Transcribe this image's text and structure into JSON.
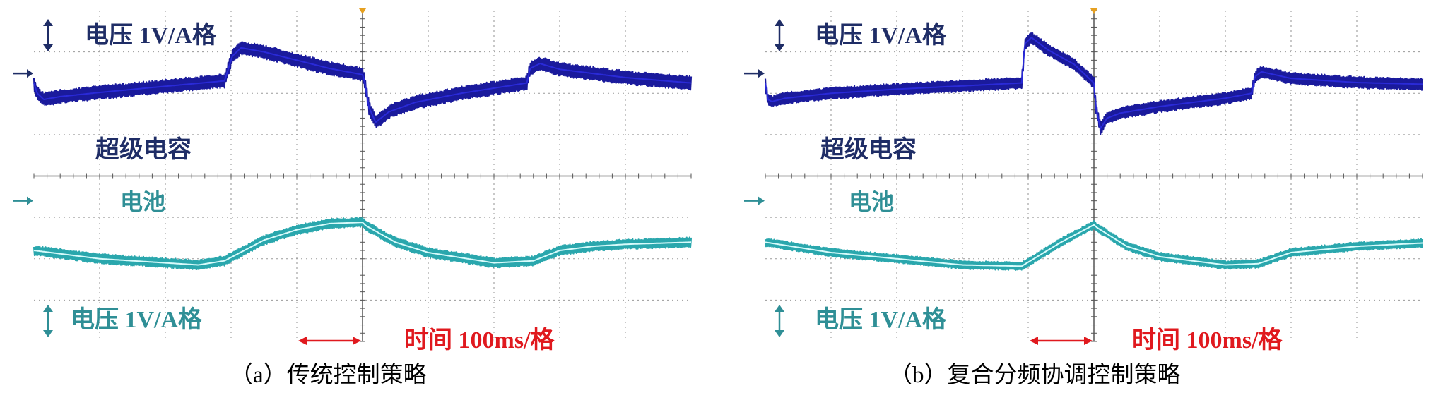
{
  "colors": {
    "capacitor": "#1a1a9c",
    "capacitor_label": "#1f2d66",
    "battery": "#2aa7ad",
    "battery_label": "#2f8f96",
    "time": "#e0191e",
    "trigger": "#e6a020",
    "grid": "#9a9a9a"
  },
  "chart_data": [
    {
      "type": "line",
      "caption": "（a）传统控制策略",
      "labels": {
        "cap_scale": "电压 1V/A格",
        "cap_name": "超级电容",
        "bat_name": "电池",
        "bat_scale": "电压 1V/A格",
        "time_scale": "时间 100ms/格"
      },
      "xlim": [
        0,
        10
      ],
      "ylim": [
        -4,
        4
      ],
      "series": [
        {
          "key": "capacitor",
          "band": 0.14,
          "x": [
            0,
            0.05,
            0.15,
            0.4,
            1,
            2,
            2.9,
            3.02,
            3.15,
            3.5,
            4,
            4.5,
            5,
            5.03,
            5.1,
            5.2,
            5.4,
            5.8,
            6.5,
            7.5,
            7.55,
            7.7,
            8,
            9,
            10
          ],
          "y": [
            2.25,
            2.0,
            1.85,
            1.92,
            2.02,
            2.17,
            2.3,
            2.9,
            3.1,
            3.0,
            2.8,
            2.6,
            2.45,
            2.3,
            1.65,
            1.3,
            1.55,
            1.78,
            2.0,
            2.25,
            2.6,
            2.72,
            2.58,
            2.38,
            2.25
          ]
        },
        {
          "key": "battery",
          "band": 0.1,
          "x": [
            0,
            1,
            2,
            2.5,
            2.9,
            3.5,
            4,
            4.5,
            5,
            5.05,
            5.5,
            6,
            7,
            7.6,
            8,
            8.5,
            9,
            10
          ],
          "y": [
            -1.8,
            -2.0,
            -2.1,
            -2.15,
            -2.05,
            -1.55,
            -1.3,
            -1.15,
            -1.12,
            -1.2,
            -1.6,
            -1.85,
            -2.1,
            -2.05,
            -1.8,
            -1.7,
            -1.65,
            -1.6
          ]
        }
      ]
    },
    {
      "type": "line",
      "caption": "（b）复合分频协调控制策略",
      "labels": {
        "cap_scale": "电压 1V/A格",
        "cap_name": "超级电容",
        "bat_name": "电池",
        "bat_scale": "电压 1V/A格",
        "time_scale": "时间 100ms/格"
      },
      "xlim": [
        0,
        10
      ],
      "ylim": [
        -4,
        4
      ],
      "series": [
        {
          "key": "capacitor",
          "band": 0.12,
          "x": [
            0,
            0.04,
            0.1,
            0.3,
            1,
            2,
            3.9,
            3.95,
            4.05,
            4.3,
            4.7,
            5,
            5.03,
            5.1,
            5.2,
            5.4,
            6,
            7,
            7.4,
            7.45,
            7.55,
            8,
            9,
            10
          ],
          "y": [
            2.25,
            1.85,
            1.8,
            1.88,
            2.0,
            2.1,
            2.25,
            3.2,
            3.35,
            3.05,
            2.7,
            2.25,
            1.65,
            1.15,
            1.4,
            1.52,
            1.68,
            1.88,
            2.0,
            2.4,
            2.52,
            2.36,
            2.26,
            2.22
          ]
        },
        {
          "key": "battery",
          "band": 0.085,
          "x": [
            0,
            1,
            2,
            3,
            3.9,
            4.5,
            5,
            5.05,
            5.5,
            6,
            7,
            7.5,
            8,
            9,
            10
          ],
          "y": [
            -1.6,
            -1.85,
            -2.0,
            -2.15,
            -2.18,
            -1.6,
            -1.18,
            -1.25,
            -1.7,
            -1.95,
            -2.15,
            -2.12,
            -1.85,
            -1.7,
            -1.62
          ]
        }
      ]
    }
  ]
}
